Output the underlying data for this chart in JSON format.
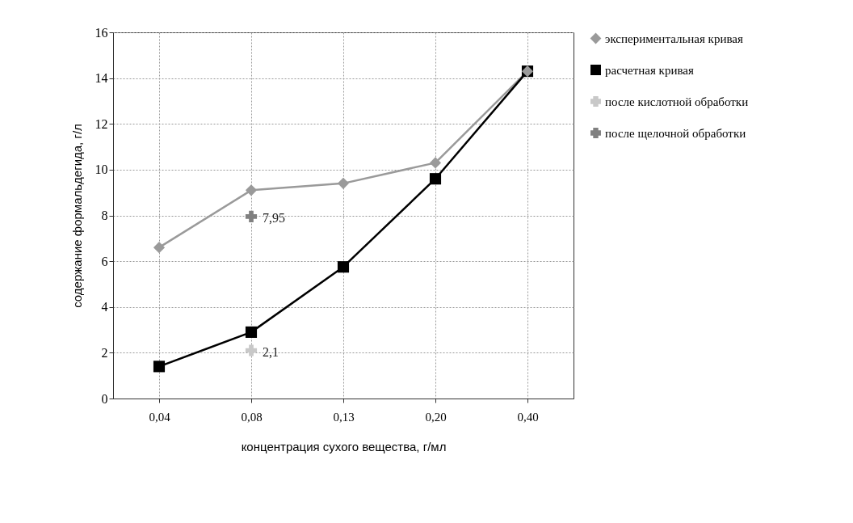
{
  "chart_data": {
    "type": "line",
    "xlabel": "концентрация сухого вещества, г/мл",
    "ylabel": "содержание формальдегида, г/л",
    "categories": [
      "0,04",
      "0,08",
      "0,13",
      "0,20",
      "0,40"
    ],
    "ylim": [
      0,
      16
    ],
    "yticks": [
      0,
      2,
      4,
      6,
      8,
      10,
      12,
      14,
      16
    ],
    "grid": true,
    "legend": "right",
    "series": [
      {
        "name": "экспериментальная кривая",
        "color": "#9a9a9a",
        "marker": "diamond",
        "values": [
          6.6,
          9.1,
          9.4,
          10.3,
          14.3
        ]
      },
      {
        "name": "расчетная кривая",
        "color": "#000000",
        "marker": "square",
        "values": [
          1.4,
          2.9,
          5.75,
          9.6,
          14.3
        ]
      },
      {
        "name": "после кислотной обработки",
        "color": "#c8c8c8",
        "marker": "cross",
        "values": [
          null,
          2.1,
          null,
          null,
          null
        ],
        "value_labels": [
          null,
          "2,1",
          null,
          null,
          null
        ]
      },
      {
        "name": "после щелочной обработки",
        "color": "#808080",
        "marker": "cross",
        "values": [
          null,
          7.95,
          null,
          null,
          null
        ],
        "value_labels": [
          null,
          "7,95",
          null,
          null,
          null
        ]
      }
    ]
  }
}
